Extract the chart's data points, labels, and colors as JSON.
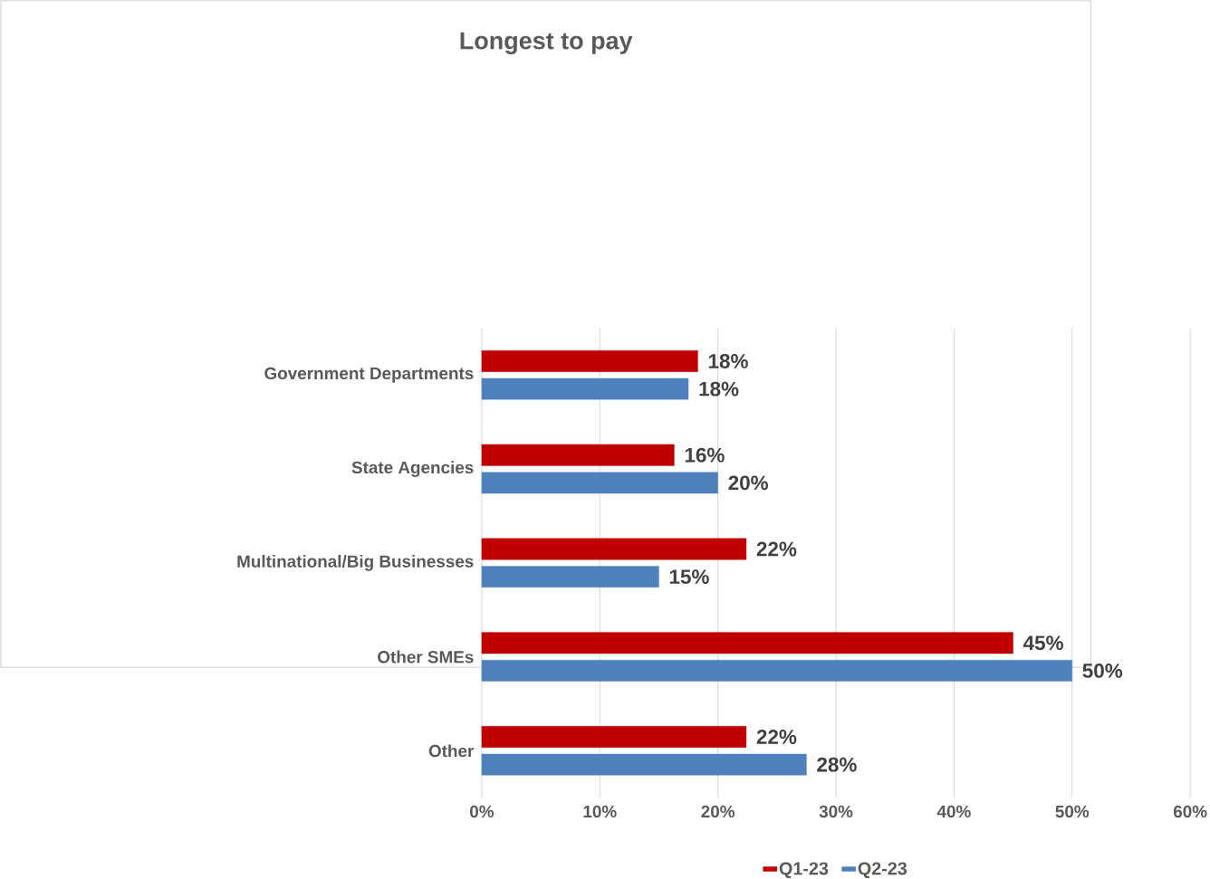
{
  "chart_data": {
    "type": "bar",
    "orientation": "horizontal",
    "title": "Longest to pay",
    "categories": [
      "Government Departments",
      "State Agencies",
      "Multinational/Big Businesses",
      "Other SMEs",
      "Other"
    ],
    "series": [
      {
        "name": "Q1-23",
        "color": "#c00000",
        "values": [
          18.3,
          16.3,
          22.4,
          45,
          22.4
        ],
        "value_labels": [
          "18%",
          "16%",
          "22%",
          "45%",
          "22%"
        ]
      },
      {
        "name": "Q2-23",
        "color": "#4f81bd",
        "values": [
          17.5,
          20,
          15,
          50,
          27.5
        ],
        "value_labels": [
          "18%",
          "20%",
          "15%",
          "50%",
          "28%"
        ]
      }
    ],
    "xlim": [
      0,
      60
    ],
    "xticks": [
      {
        "value": 0,
        "label": "0%"
      },
      {
        "value": 10,
        "label": "10%"
      },
      {
        "value": 20,
        "label": "20%"
      },
      {
        "value": 30,
        "label": "30%"
      },
      {
        "value": 40,
        "label": "40%"
      },
      {
        "value": 50,
        "label": "50%"
      },
      {
        "value": 60,
        "label": "60%"
      }
    ],
    "grid": "x",
    "legend": "bottom"
  }
}
